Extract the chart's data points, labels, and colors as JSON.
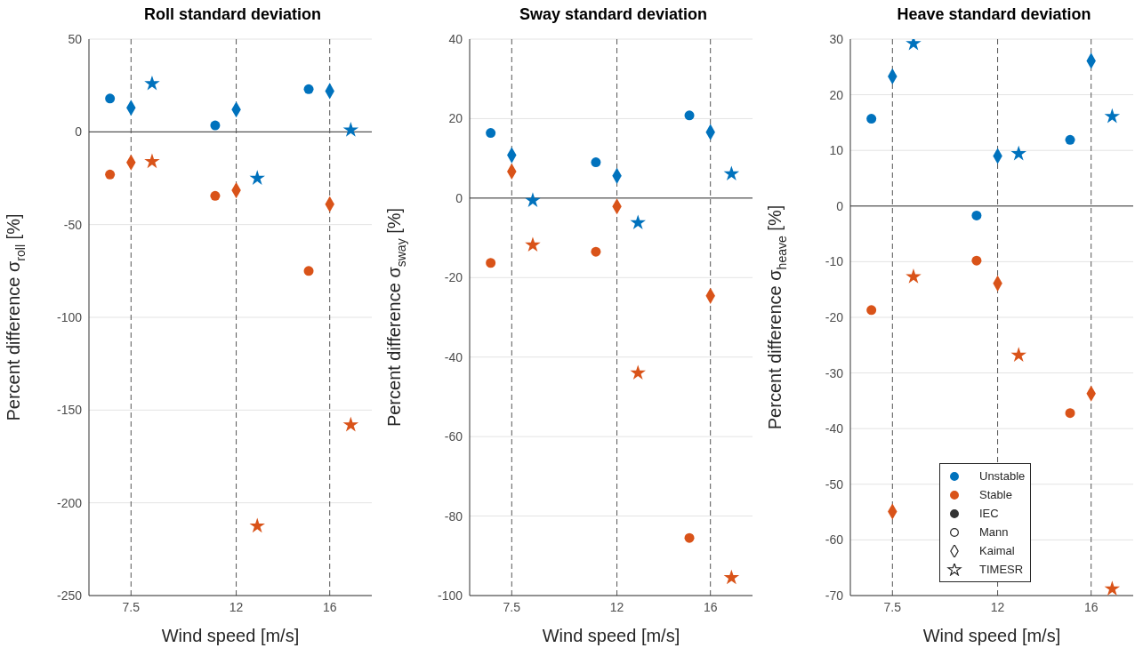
{
  "chart_data": [
    {
      "type": "scatter",
      "title": "Roll standard deviation",
      "xlabel": "Wind speed [m/s]",
      "ylabel": "Percent difference σ$_{roll}$ [%]",
      "xlim": [
        5.7,
        17.8
      ],
      "xticks": [
        7.5,
        12,
        16
      ],
      "ylim": [
        -250,
        50
      ],
      "yticks": [
        -250,
        -200,
        -150,
        -100,
        -50,
        0,
        50
      ],
      "grid": "y",
      "ref_lines": [
        {
          "axis": "y",
          "value": 0,
          "color": "#333333",
          "line_style": "solid"
        },
        {
          "axis": "x",
          "value": 7.5,
          "color": "#555555",
          "line_style": "dashed"
        },
        {
          "axis": "x",
          "value": 12,
          "color": "#555555",
          "line_style": "dashed"
        },
        {
          "axis": "x",
          "value": 16,
          "color": "#555555",
          "line_style": "dashed"
        }
      ],
      "series": [
        {
          "color": "#0072bd",
          "marker": "circle",
          "x": [
            6.6,
            11.1,
            15.1
          ],
          "values": [
            18,
            3.5,
            23
          ]
        },
        {
          "color": "#0072bd",
          "marker": "diamond",
          "x": [
            7.5,
            12,
            16
          ],
          "values": [
            13,
            12,
            22
          ]
        },
        {
          "color": "#0072bd",
          "marker": "star",
          "x": [
            8.4,
            12.9,
            16.9
          ],
          "values": [
            26,
            -25,
            1
          ]
        },
        {
          "color": "#d95319",
          "marker": "circle",
          "x": [
            6.6,
            11.1,
            15.1
          ],
          "values": [
            -23,
            -34.5,
            -75
          ]
        },
        {
          "color": "#d95319",
          "marker": "diamond",
          "x": [
            7.5,
            12,
            16
          ],
          "values": [
            -16.5,
            -31.5,
            -39
          ]
        },
        {
          "color": "#d95319",
          "marker": "star",
          "x": [
            8.4,
            12.9,
            16.9
          ],
          "values": [
            -16,
            -212.5,
            -158
          ]
        }
      ]
    },
    {
      "type": "scatter",
      "title": "Sway standard deviation",
      "xlabel": "Wind speed [m/s]",
      "ylabel": "Percent difference σ$_{sway}$ [%]",
      "xlim": [
        5.7,
        17.8
      ],
      "xticks": [
        7.5,
        12,
        16
      ],
      "ylim": [
        -100,
        40
      ],
      "yticks": [
        -100,
        -80,
        -60,
        -40,
        -20,
        0,
        20,
        40
      ],
      "grid": "y",
      "ref_lines": [
        {
          "axis": "y",
          "value": 0,
          "color": "#333333",
          "line_style": "solid"
        },
        {
          "axis": "x",
          "value": 7.5,
          "color": "#555555",
          "line_style": "dashed"
        },
        {
          "axis": "x",
          "value": 12,
          "color": "#555555",
          "line_style": "dashed"
        },
        {
          "axis": "x",
          "value": 16,
          "color": "#555555",
          "line_style": "dashed"
        }
      ],
      "series": [
        {
          "color": "#0072bd",
          "marker": "circle",
          "x": [
            6.6,
            11.1,
            15.1
          ],
          "values": [
            16.4,
            9,
            20.8
          ]
        },
        {
          "color": "#0072bd",
          "marker": "diamond",
          "x": [
            7.5,
            12,
            16
          ],
          "values": [
            10.8,
            5.6,
            16.6
          ]
        },
        {
          "color": "#0072bd",
          "marker": "star",
          "x": [
            8.4,
            12.9,
            16.9
          ],
          "values": [
            -0.6,
            -6.2,
            6.1
          ]
        },
        {
          "color": "#d95319",
          "marker": "circle",
          "x": [
            6.6,
            11.1,
            15.1
          ],
          "values": [
            -16.3,
            -13.5,
            -85.5
          ]
        },
        {
          "color": "#d95319",
          "marker": "diamond",
          "x": [
            7.5,
            12,
            16
          ],
          "values": [
            6.7,
            -2.1,
            -24.6
          ]
        },
        {
          "color": "#d95319",
          "marker": "star",
          "x": [
            8.4,
            12.9,
            16.9
          ],
          "values": [
            -11.8,
            -44,
            -95.5
          ]
        }
      ]
    },
    {
      "type": "scatter",
      "title": "Heave standard deviation",
      "xlabel": "Wind speed [m/s]",
      "ylabel": "Percent difference σ$_{heave}$ [%]",
      "xlim": [
        5.7,
        17.8
      ],
      "xticks": [
        7.5,
        12,
        16
      ],
      "ylim": [
        -70,
        30
      ],
      "yticks": [
        -70,
        -60,
        -50,
        -40,
        -30,
        -20,
        -10,
        0,
        10,
        20,
        30
      ],
      "grid": "y",
      "legend": "bottom",
      "ref_lines": [
        {
          "axis": "y",
          "value": 0,
          "color": "#333333",
          "line_style": "solid"
        },
        {
          "axis": "x",
          "value": 7.5,
          "color": "#555555",
          "line_style": "dashed"
        },
        {
          "axis": "x",
          "value": 12,
          "color": "#555555",
          "line_style": "dashed"
        },
        {
          "axis": "x",
          "value": 16,
          "color": "#555555",
          "line_style": "dashed"
        }
      ],
      "series": [
        {
          "color": "#0072bd",
          "marker": "circle",
          "x": [
            6.6,
            11.1,
            15.1
          ],
          "values": [
            15.7,
            -1.7,
            11.9
          ]
        },
        {
          "color": "#0072bd",
          "marker": "diamond",
          "x": [
            7.5,
            12,
            16
          ],
          "values": [
            23.3,
            9,
            26.1
          ]
        },
        {
          "color": "#0072bd",
          "marker": "star",
          "x": [
            8.4,
            12.9,
            16.9
          ],
          "values": [
            29.2,
            9.4,
            16.1
          ]
        },
        {
          "color": "#d95319",
          "marker": "circle",
          "x": [
            6.6,
            11.1,
            15.1
          ],
          "values": [
            -18.7,
            -9.8,
            -37.2
          ]
        },
        {
          "color": "#d95319",
          "marker": "diamond",
          "x": [
            7.5,
            12,
            16
          ],
          "values": [
            -54.9,
            -13.9,
            -33.7
          ]
        },
        {
          "color": "#d95319",
          "marker": "star",
          "x": [
            8.4,
            12.9,
            16.9
          ],
          "values": [
            -12.7,
            -26.8,
            -68.8
          ]
        },
        {
          "name": "Unstable",
          "color": "#0072bd",
          "marker": "circle"
        },
        {
          "name": "Stable",
          "color": "#d95319",
          "marker": "circle"
        },
        {
          "name": "IEC",
          "color": "#333333",
          "marker": "circle"
        },
        {
          "name": "Mann",
          "color": "#ffffff",
          "marker": "circle"
        },
        {
          "name": "Kaimal",
          "color": "#ffffff",
          "marker": "diamond"
        },
        {
          "name": "TIMESR",
          "color": "#ffffff",
          "marker": "star"
        }
      ]
    }
  ]
}
